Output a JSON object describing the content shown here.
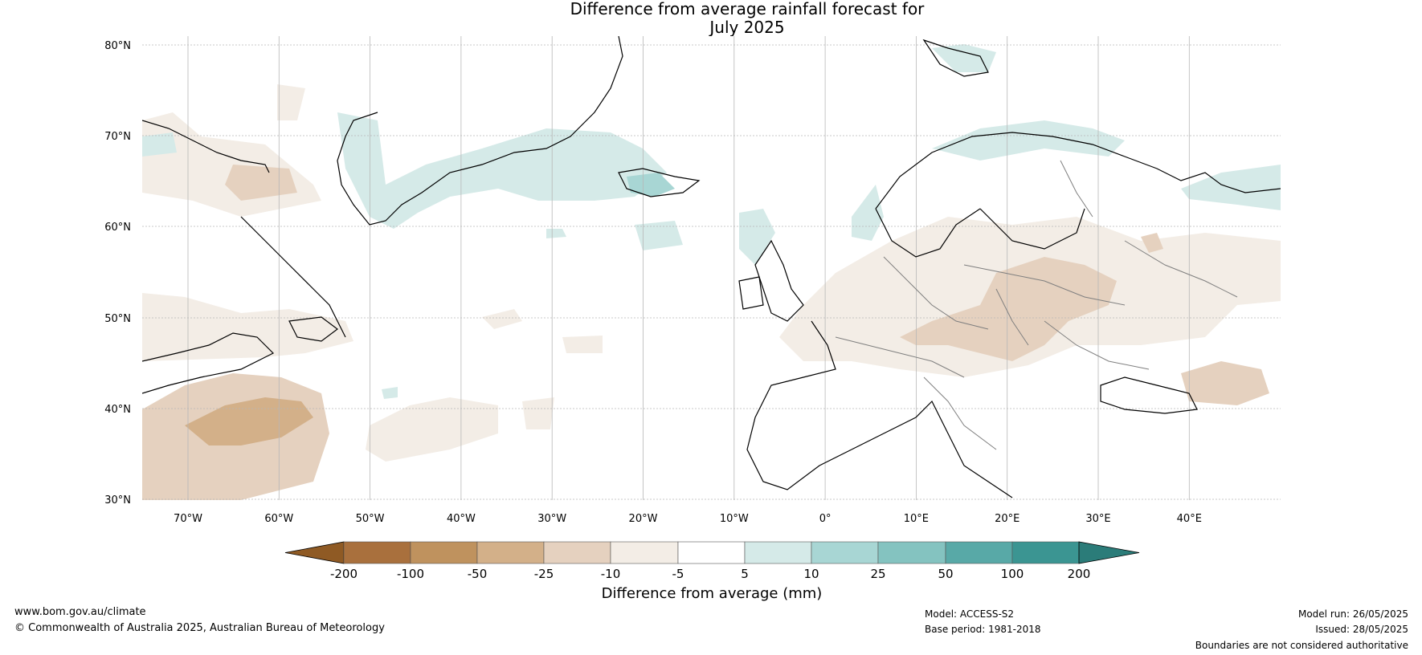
{
  "title_line1": "Difference from average rainfall forecast for",
  "title_line2": "July 2025",
  "lat_ticks": [
    "80°N",
    "70°N",
    "60°N",
    "50°N",
    "40°N",
    "30°N"
  ],
  "lon_ticks": [
    "70°W",
    "60°W",
    "50°W",
    "40°W",
    "30°W",
    "20°W",
    "10°W",
    "0°",
    "10°E",
    "20°E",
    "30°E",
    "40°E"
  ],
  "colorbar": {
    "labels": [
      "-200",
      "-100",
      "-50",
      "-25",
      "-10",
      "-5",
      "5",
      "10",
      "25",
      "50",
      "100",
      "200"
    ],
    "colors": [
      "#8f5a24",
      "#a9703d",
      "#bf925e",
      "#d3b089",
      "#e5d1bf",
      "#f3ede6",
      "#ffffff",
      "#d5eae8",
      "#a8d6d4",
      "#84c3c0",
      "#58a9a7",
      "#3b9592",
      "#2b7c79"
    ],
    "xlabel": "Difference from average (mm)"
  },
  "footer": {
    "website": "www.bom.gov.au/climate",
    "copyright": "© Commonwealth of Australia 2025, Australian Bureau of Meteorology",
    "model": "Model: ACCESS-S2",
    "base_period": "Base period: 1981-2018",
    "model_run": "Model run: 26/05/2025",
    "issued": "Issued: 28/05/2025",
    "disclaimer": "Boundaries are not considered authoritative"
  }
}
